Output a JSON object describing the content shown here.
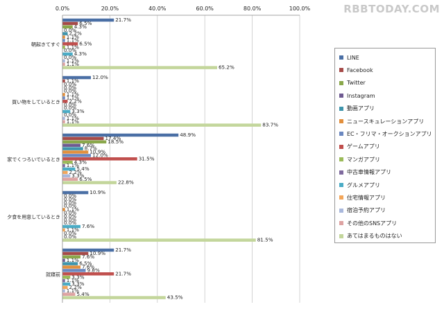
{
  "watermark": "RBBTODAY.COM",
  "chart_data": {
    "type": "bar",
    "orientation": "horizontal",
    "title": "",
    "xlabel": "",
    "ylabel": "",
    "xlim": [
      0,
      100
    ],
    "x_ticks": [
      "0.0%",
      "20.0%",
      "40.0%",
      "60.0%",
      "80.0%",
      "100.0%"
    ],
    "grid": true,
    "legend_position": "right",
    "categories": [
      "朝起きてすぐ",
      "買い物をしているとき",
      "家でくつろいでいるとき",
      "夕食を用意しているとき",
      "就寝前"
    ],
    "series": [
      {
        "name": "LINE",
        "color": "#4a6fa5",
        "values": [
          21.7,
          12.0,
          48.9,
          10.9,
          21.7
        ]
      },
      {
        "name": "Facebook",
        "color": "#a64a48",
        "values": [
          6.5,
          1.1,
          17.4,
          0.0,
          10.9
        ]
      },
      {
        "name": "Twitter",
        "color": "#8aa84b",
        "values": [
          4.3,
          0.0,
          18.5,
          0.0,
          7.6
        ]
      },
      {
        "name": "Instagram",
        "color": "#6e5a91",
        "values": [
          0.0,
          0.0,
          7.6,
          0.0,
          1.1
        ]
      },
      {
        "name": "動画アプリ",
        "color": "#3f95ac",
        "values": [
          2.2,
          0.0,
          8.7,
          0.0,
          6.5
        ]
      },
      {
        "name": "ニュースキュレーションアプリ",
        "color": "#e28f3c",
        "values": [
          1.1,
          1.1,
          10.9,
          1.1,
          7.6
        ]
      },
      {
        "name": "EC・フリマ・オークションアプリ",
        "color": "#6b88c0",
        "values": [
          1.1,
          1.1,
          12.0,
          0.0,
          9.8
        ]
      },
      {
        "name": "ゲームアプリ",
        "color": "#c04e4c",
        "values": [
          6.5,
          2.2,
          31.5,
          0.0,
          21.7
        ]
      },
      {
        "name": "マンガアプリ",
        "color": "#9bbb59",
        "values": [
          1.1,
          0.0,
          4.3,
          0.0,
          3.3
        ]
      },
      {
        "name": "中古車情報アプリ",
        "color": "#7f6a9e",
        "values": [
          0.0,
          0.0,
          1.1,
          0.0,
          1.1
        ]
      },
      {
        "name": "グルメアプリ",
        "color": "#4bacc6",
        "values": [
          4.3,
          3.3,
          5.4,
          7.6,
          3.3
        ]
      },
      {
        "name": "住宅情報アプリ",
        "color": "#f3a65a",
        "values": [
          0.0,
          0.0,
          2.2,
          1.1,
          2.2
        ]
      },
      {
        "name": "宿泊予約アプリ",
        "color": "#a9b8dc",
        "values": [
          1.1,
          1.1,
          3.3,
          0.0,
          1.1
        ]
      },
      {
        "name": "その他のSNSアプリ",
        "color": "#dea3a2",
        "values": [
          1.1,
          1.1,
          6.5,
          0.0,
          5.4
        ]
      },
      {
        "name": "あてはまるものはない",
        "color": "#c3d69b",
        "values": [
          65.2,
          83.7,
          22.8,
          81.5,
          43.5
        ]
      }
    ],
    "data_labels": [
      "21.7%",
      "6.5%",
      "4.3%",
      "0.0%",
      "2.2%",
      "1.1%",
      "1.1%",
      "6.5%",
      "1.1%",
      "0.0%",
      "4.3%",
      "0.0%",
      "1.1%",
      "1.1%",
      "65.2%",
      "12.0%",
      "1.1%",
      "0.0%",
      "0.0%",
      "0.0%",
      "1.1%",
      "1.1%",
      "2.2%",
      "0.0%",
      "0.0%",
      "3.3%",
      "0.0%",
      "1.1%",
      "1.1%",
      "83.7%",
      "48.9%",
      "17.4%",
      "18.5%",
      "7.6%",
      "8.7%",
      "10.9%",
      "12.0%",
      "31.5%",
      "4.3%",
      "1.1%",
      "5.4%",
      "2.2%",
      "3.3%",
      "6.5%",
      "22.8%",
      "10.9%",
      "0.0%",
      "0.0%",
      "0.0%",
      "0.0%",
      "1.1%",
      "0.0%",
      "0.0%",
      "0.0%",
      "0.0%",
      "7.6%",
      "1.1%",
      "0.0%",
      "0.0%",
      "81.5%",
      "21.7%",
      "10.9%",
      "7.6%",
      "1.1%",
      "6.5%",
      "7.6%",
      "9.8%",
      "21.7%",
      "3.3%",
      "1.1%",
      "3.3%",
      "2.2%",
      "1.1%",
      "5.4%",
      "43.5%"
    ]
  }
}
